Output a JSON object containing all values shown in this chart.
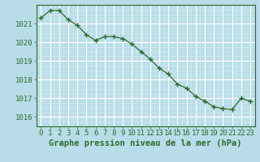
{
  "hours": [
    0,
    1,
    2,
    3,
    4,
    5,
    6,
    7,
    8,
    9,
    10,
    11,
    12,
    13,
    14,
    15,
    16,
    17,
    18,
    19,
    20,
    21,
    22,
    23
  ],
  "pressure": [
    1021.3,
    1021.7,
    1021.7,
    1021.2,
    1020.9,
    1020.4,
    1020.1,
    1020.3,
    1020.3,
    1020.2,
    1019.9,
    1019.5,
    1019.1,
    1018.6,
    1018.3,
    1017.75,
    1017.55,
    1017.1,
    1016.85,
    1016.55,
    1016.45,
    1016.4,
    1017.0,
    1016.85
  ],
  "line_color": "#2d6a2d",
  "marker_color": "#2d6a2d",
  "bg_color": "#b8dde8",
  "plot_bg_color": "#b8dde8",
  "grid_color_major": "#ffffff",
  "grid_color_minor": "#d0eaf0",
  "axis_color": "#2d6a2d",
  "spine_color": "#2d6a2d",
  "ylabel_values": [
    1016,
    1017,
    1018,
    1019,
    1020,
    1021
  ],
  "xlabel_values": [
    0,
    1,
    2,
    3,
    4,
    5,
    6,
    7,
    8,
    9,
    10,
    11,
    12,
    13,
    14,
    15,
    16,
    17,
    18,
    19,
    20,
    21,
    22,
    23
  ],
  "xlabel": "Graphe pression niveau de la mer (hPa)",
  "ylim": [
    1015.5,
    1022.0
  ],
  "xlim": [
    -0.5,
    23.5
  ],
  "fontsize_tick": 6.5,
  "fontsize_xlabel": 7.5
}
